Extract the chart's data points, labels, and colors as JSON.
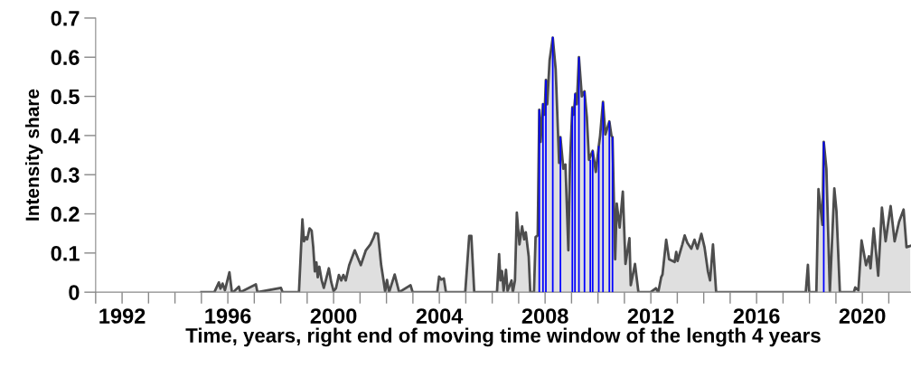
{
  "chart_data": {
    "type": "area",
    "xlabel": "Time, years, right end of moving time window of the length 4 years",
    "ylabel": "Intensity share",
    "xlim": [
      1991,
      2021.84
    ],
    "ylim": [
      0,
      0.7
    ],
    "xticks": [
      {
        "value": 1991,
        "label": null
      },
      1992,
      {
        "value": 1993,
        "label": null
      },
      {
        "value": 1994,
        "label": null
      },
      {
        "value": 1995,
        "label": null
      },
      1996,
      {
        "value": 1997,
        "label": null
      },
      {
        "value": 1998,
        "label": null
      },
      {
        "value": 1999,
        "label": null
      },
      2000,
      {
        "value": 2001,
        "label": null
      },
      {
        "value": 2002,
        "label": null
      },
      {
        "value": 2003,
        "label": null
      },
      2004,
      {
        "value": 2005,
        "label": null
      },
      {
        "value": 2006,
        "label": null
      },
      {
        "value": 2007,
        "label": null
      },
      2008,
      {
        "value": 2009,
        "label": null
      },
      {
        "value": 2010,
        "label": null
      },
      {
        "value": 2011,
        "label": null
      },
      2012,
      {
        "value": 2013,
        "label": null
      },
      {
        "value": 2014,
        "label": null
      },
      {
        "value": 2015,
        "label": null
      },
      2016,
      {
        "value": 2017,
        "label": null
      },
      {
        "value": 2018,
        "label": null
      },
      {
        "value": 2019,
        "label": null
      },
      2020,
      {
        "value": 2021,
        "label": null
      }
    ],
    "yticks": [
      0,
      0.1,
      0.2,
      0.3,
      0.4,
      0.5,
      0.6,
      0.7
    ],
    "grid": false,
    "series": [
      {
        "color": "#4d4d4d",
        "x": [
          1995.0,
          1995.49,
          1995.66,
          1995.72,
          1995.8,
          1995.89,
          1996.06,
          1996.15,
          1996.2,
          1996.42,
          1996.47,
          1997.06,
          1997.12,
          1998.01,
          1998.07,
          1998.69,
          1998.82,
          1998.88,
          1998.95,
          1999.0,
          1999.09,
          1999.17,
          1999.23,
          1999.29,
          1999.35,
          1999.4,
          1999.46,
          1999.55,
          1999.63,
          1999.72,
          1999.82,
          1999.91,
          2000.0,
          2000.09,
          2000.2,
          2000.29,
          2000.37,
          2000.46,
          2000.59,
          2000.8,
          2001.03,
          2001.22,
          2001.39,
          2001.51,
          2001.57,
          2001.68,
          2001.8,
          2001.88,
          2001.95,
          2002.02,
          2002.1,
          2002.31,
          2002.48,
          2002.91,
          2002.99,
          2003.92,
          2003.99,
          2004.07,
          2004.17,
          2004.25,
          2004.98,
          2005.13,
          2005.21,
          2005.32,
          2006.18,
          2006.26,
          2006.31,
          2006.37,
          2006.43,
          2006.52,
          2006.58,
          2006.73,
          2006.78,
          2006.86,
          2006.93,
          2007.03,
          2007.13,
          2007.21,
          2007.27,
          2007.38,
          2007.44,
          2007.58,
          2007.64,
          2007.72,
          2007.78,
          2007.83,
          2007.92,
          2007.98,
          2008.03,
          2008.08,
          2008.17,
          2008.29,
          2008.4,
          2008.53,
          2008.58,
          2008.69,
          2008.77,
          2008.88,
          2008.94,
          2009.03,
          2009.08,
          2009.15,
          2009.2,
          2009.28,
          2009.39,
          2009.49,
          2009.58,
          2009.66,
          2009.8,
          2009.92,
          2010.03,
          2010.08,
          2010.19,
          2010.28,
          2010.43,
          2010.51,
          2010.55,
          2010.65,
          2010.71,
          2010.82,
          2010.94,
          2011.04,
          2011.19,
          2011.24,
          2011.4,
          2011.53,
          2011.99,
          2012.19,
          2012.28,
          2012.39,
          2012.44,
          2012.58,
          2012.69,
          2012.9,
          2012.96,
          2013.01,
          2013.19,
          2013.28,
          2013.38,
          2013.53,
          2013.65,
          2013.76,
          2013.91,
          2014.03,
          2014.16,
          2014.24,
          2014.35,
          2014.47,
          2017.86,
          2017.94,
          2017.99,
          2018.26,
          2018.34,
          2018.49,
          2018.54,
          2018.64,
          2018.77,
          2018.94,
          2019.02,
          2019.15,
          2019.68,
          2019.73,
          2019.85,
          2019.97,
          2020.14,
          2020.25,
          2020.31,
          2020.43,
          2020.6,
          2020.74,
          2020.88,
          2021.07,
          2021.22,
          2021.39,
          2021.56,
          2021.67,
          2021.81
        ],
        "values": [
          0,
          0,
          0.025,
          0.009,
          0.022,
          0.005,
          0.051,
          0.002,
          0,
          0.014,
          0,
          0.02,
          0,
          0.011,
          0,
          0,
          0.186,
          0.13,
          0.14,
          0.135,
          0.163,
          0.157,
          0.115,
          0.053,
          0.076,
          0.038,
          0.065,
          0.03,
          0.011,
          0.034,
          0.061,
          0.026,
          0.003,
          0.01,
          0.044,
          0.03,
          0.044,
          0.03,
          0.069,
          0.107,
          0.069,
          0.107,
          0.122,
          0.139,
          0.151,
          0.149,
          0.069,
          0.034,
          0.002,
          0.031,
          0,
          0.045,
          0,
          0.018,
          0,
          0,
          0.04,
          0.032,
          0.035,
          0,
          0,
          0.144,
          0.144,
          0,
          0,
          0.097,
          0.03,
          0.054,
          0.003,
          0.057,
          0.003,
          0.03,
          0,
          0.03,
          0.203,
          0.122,
          0.168,
          0.135,
          0.153,
          0.091,
          0,
          0,
          0.141,
          0.145,
          0.466,
          0.384,
          0.48,
          0.453,
          0.542,
          0.48,
          0.592,
          0.65,
          0.569,
          0.33,
          0.396,
          0.315,
          0.326,
          0.107,
          0.326,
          0.472,
          0.453,
          0.507,
          0.48,
          0.6,
          0.5,
          0.513,
          0.446,
          0.338,
          0.361,
          0.307,
          0.373,
          0.399,
          0.486,
          0.403,
          0.436,
          0.399,
          0.396,
          0.084,
          0.226,
          0.165,
          0.257,
          0.072,
          0.138,
          0.018,
          0.072,
          0,
          0,
          0.01,
          0,
          0.038,
          0.045,
          0.134,
          0.084,
          0.077,
          0.103,
          0.08,
          0.122,
          0.145,
          0.126,
          0.111,
          0.134,
          0.111,
          0.149,
          0.115,
          0.053,
          0.03,
          0.122,
          0,
          0,
          0.07,
          0,
          0,
          0.263,
          0.172,
          0.384,
          0.315,
          0,
          0.265,
          0.208,
          0,
          0,
          0.012,
          0.005,
          0.132,
          0.069,
          0.092,
          0.061,
          0.163,
          0.042,
          0.216,
          0.13,
          0.22,
          0.13,
          0.18,
          0.211,
          0.115,
          0.118
        ]
      },
      {
        "type": "bar",
        "color": "#0000ff",
        "x": [
          2007.78,
          2007.92,
          2008.03,
          2008.29,
          2008.58,
          2009.03,
          2009.13,
          2009.28,
          2009.49,
          2009.71,
          2009.8,
          2010.03,
          2010.19,
          2010.43,
          2010.55,
          2018.54
        ],
        "values": [
          0.466,
          0.482,
          0.542,
          0.652,
          0.396,
          0.472,
          0.507,
          0.6,
          0.513,
          0.338,
          0.361,
          0.373,
          0.486,
          0.436,
          0.396,
          0.384
        ]
      }
    ]
  }
}
